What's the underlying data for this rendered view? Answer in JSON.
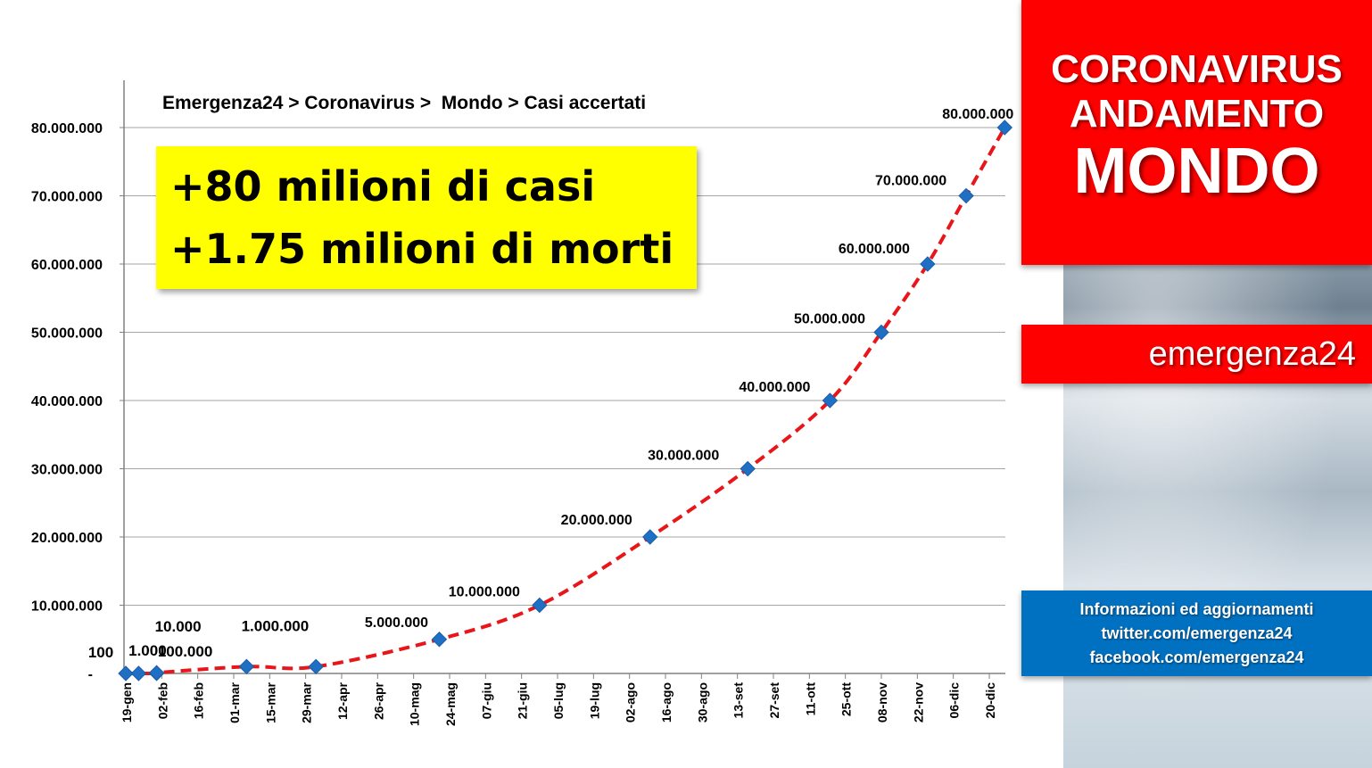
{
  "headline": {
    "line1": "+80 milioni di casi",
    "line2": "+1.75 milioni di morti"
  },
  "title_box": {
    "line1": "CORONAVIRUS",
    "line2": "ANDAMENTO",
    "line3": "MONDO"
  },
  "brand": "emergenza24",
  "info": {
    "line1": "Informazioni ed aggiornamenti",
    "line2": "twitter.com/emergenza24",
    "line3": "facebook.com/emergenza24"
  },
  "colors": {
    "red_panel": "#ff0000",
    "blue_panel": "#0070c0",
    "highlight": "#ffff00",
    "marker": "#1f6fc4",
    "trend": "#e8161a",
    "grid": "#a6a6a6"
  },
  "chart_data": {
    "type": "line",
    "title": "Emergenza24 > Coronavirus >  Mondo > Casi accertati",
    "xlabel": "",
    "ylabel": "",
    "ylim": [
      0,
      80000000
    ],
    "y_ticks": [
      {
        "value": 0,
        "label": "-"
      },
      {
        "value": 10000000,
        "label": "10.000.000"
      },
      {
        "value": 20000000,
        "label": "20.000.000"
      },
      {
        "value": 30000000,
        "label": "30.000.000"
      },
      {
        "value": 40000000,
        "label": "40.000.000"
      },
      {
        "value": 50000000,
        "label": "50.000.000"
      },
      {
        "value": 60000000,
        "label": "60.000.000"
      },
      {
        "value": 70000000,
        "label": "70.000.000"
      },
      {
        "value": 80000000,
        "label": "80.000.000"
      }
    ],
    "x_ticks": [
      "19-gen",
      "02-feb",
      "16-feb",
      "01-mar",
      "15-mar",
      "29-mar",
      "12-apr",
      "26-apr",
      "10-mag",
      "24-mag",
      "07-giu",
      "21-giu",
      "05-lug",
      "19-lug",
      "02-ago",
      "16-ago",
      "30-ago",
      "13-set",
      "27-set",
      "11-ott",
      "25-ott",
      "08-nov",
      "22-nov",
      "06-dic",
      "20-dic"
    ],
    "x_start": "2020-01-19",
    "x_end": "2020-12-20",
    "grid": true,
    "legend": "none",
    "series": [
      {
        "points": [
          {
            "date": "2020-01-19",
            "value": 100,
            "label": "100"
          },
          {
            "date": "2020-01-24",
            "value": 1000,
            "label": "1.000"
          },
          {
            "date": "2020-01-31",
            "value": 10000,
            "label": "10.000"
          },
          {
            "date": "2020-01-31",
            "value": 100000,
            "label": "100.000"
          },
          {
            "date": "2020-03-06",
            "value": 1000000,
            "label": "1.000.000"
          },
          {
            "date": "2020-04-02",
            "value": 1000000,
            "label": ""
          },
          {
            "date": "2020-05-20",
            "value": 5000000,
            "label": "5.000.000"
          },
          {
            "date": "2020-06-28",
            "value": 10000000,
            "label": "10.000.000"
          },
          {
            "date": "2020-08-10",
            "value": 20000000,
            "label": "20.000.000"
          },
          {
            "date": "2020-09-17",
            "value": 30000000,
            "label": "30.000.000"
          },
          {
            "date": "2020-10-19",
            "value": 40000000,
            "label": "40.000.000"
          },
          {
            "date": "2020-11-08",
            "value": 50000000,
            "label": "50.000.000"
          },
          {
            "date": "2020-11-26",
            "value": 60000000,
            "label": "60.000.000"
          },
          {
            "date": "2020-12-11",
            "value": 70000000,
            "label": "70.000.000"
          },
          {
            "date": "2020-12-26",
            "value": 80000000,
            "label": "80.000.000"
          }
        ]
      }
    ]
  }
}
